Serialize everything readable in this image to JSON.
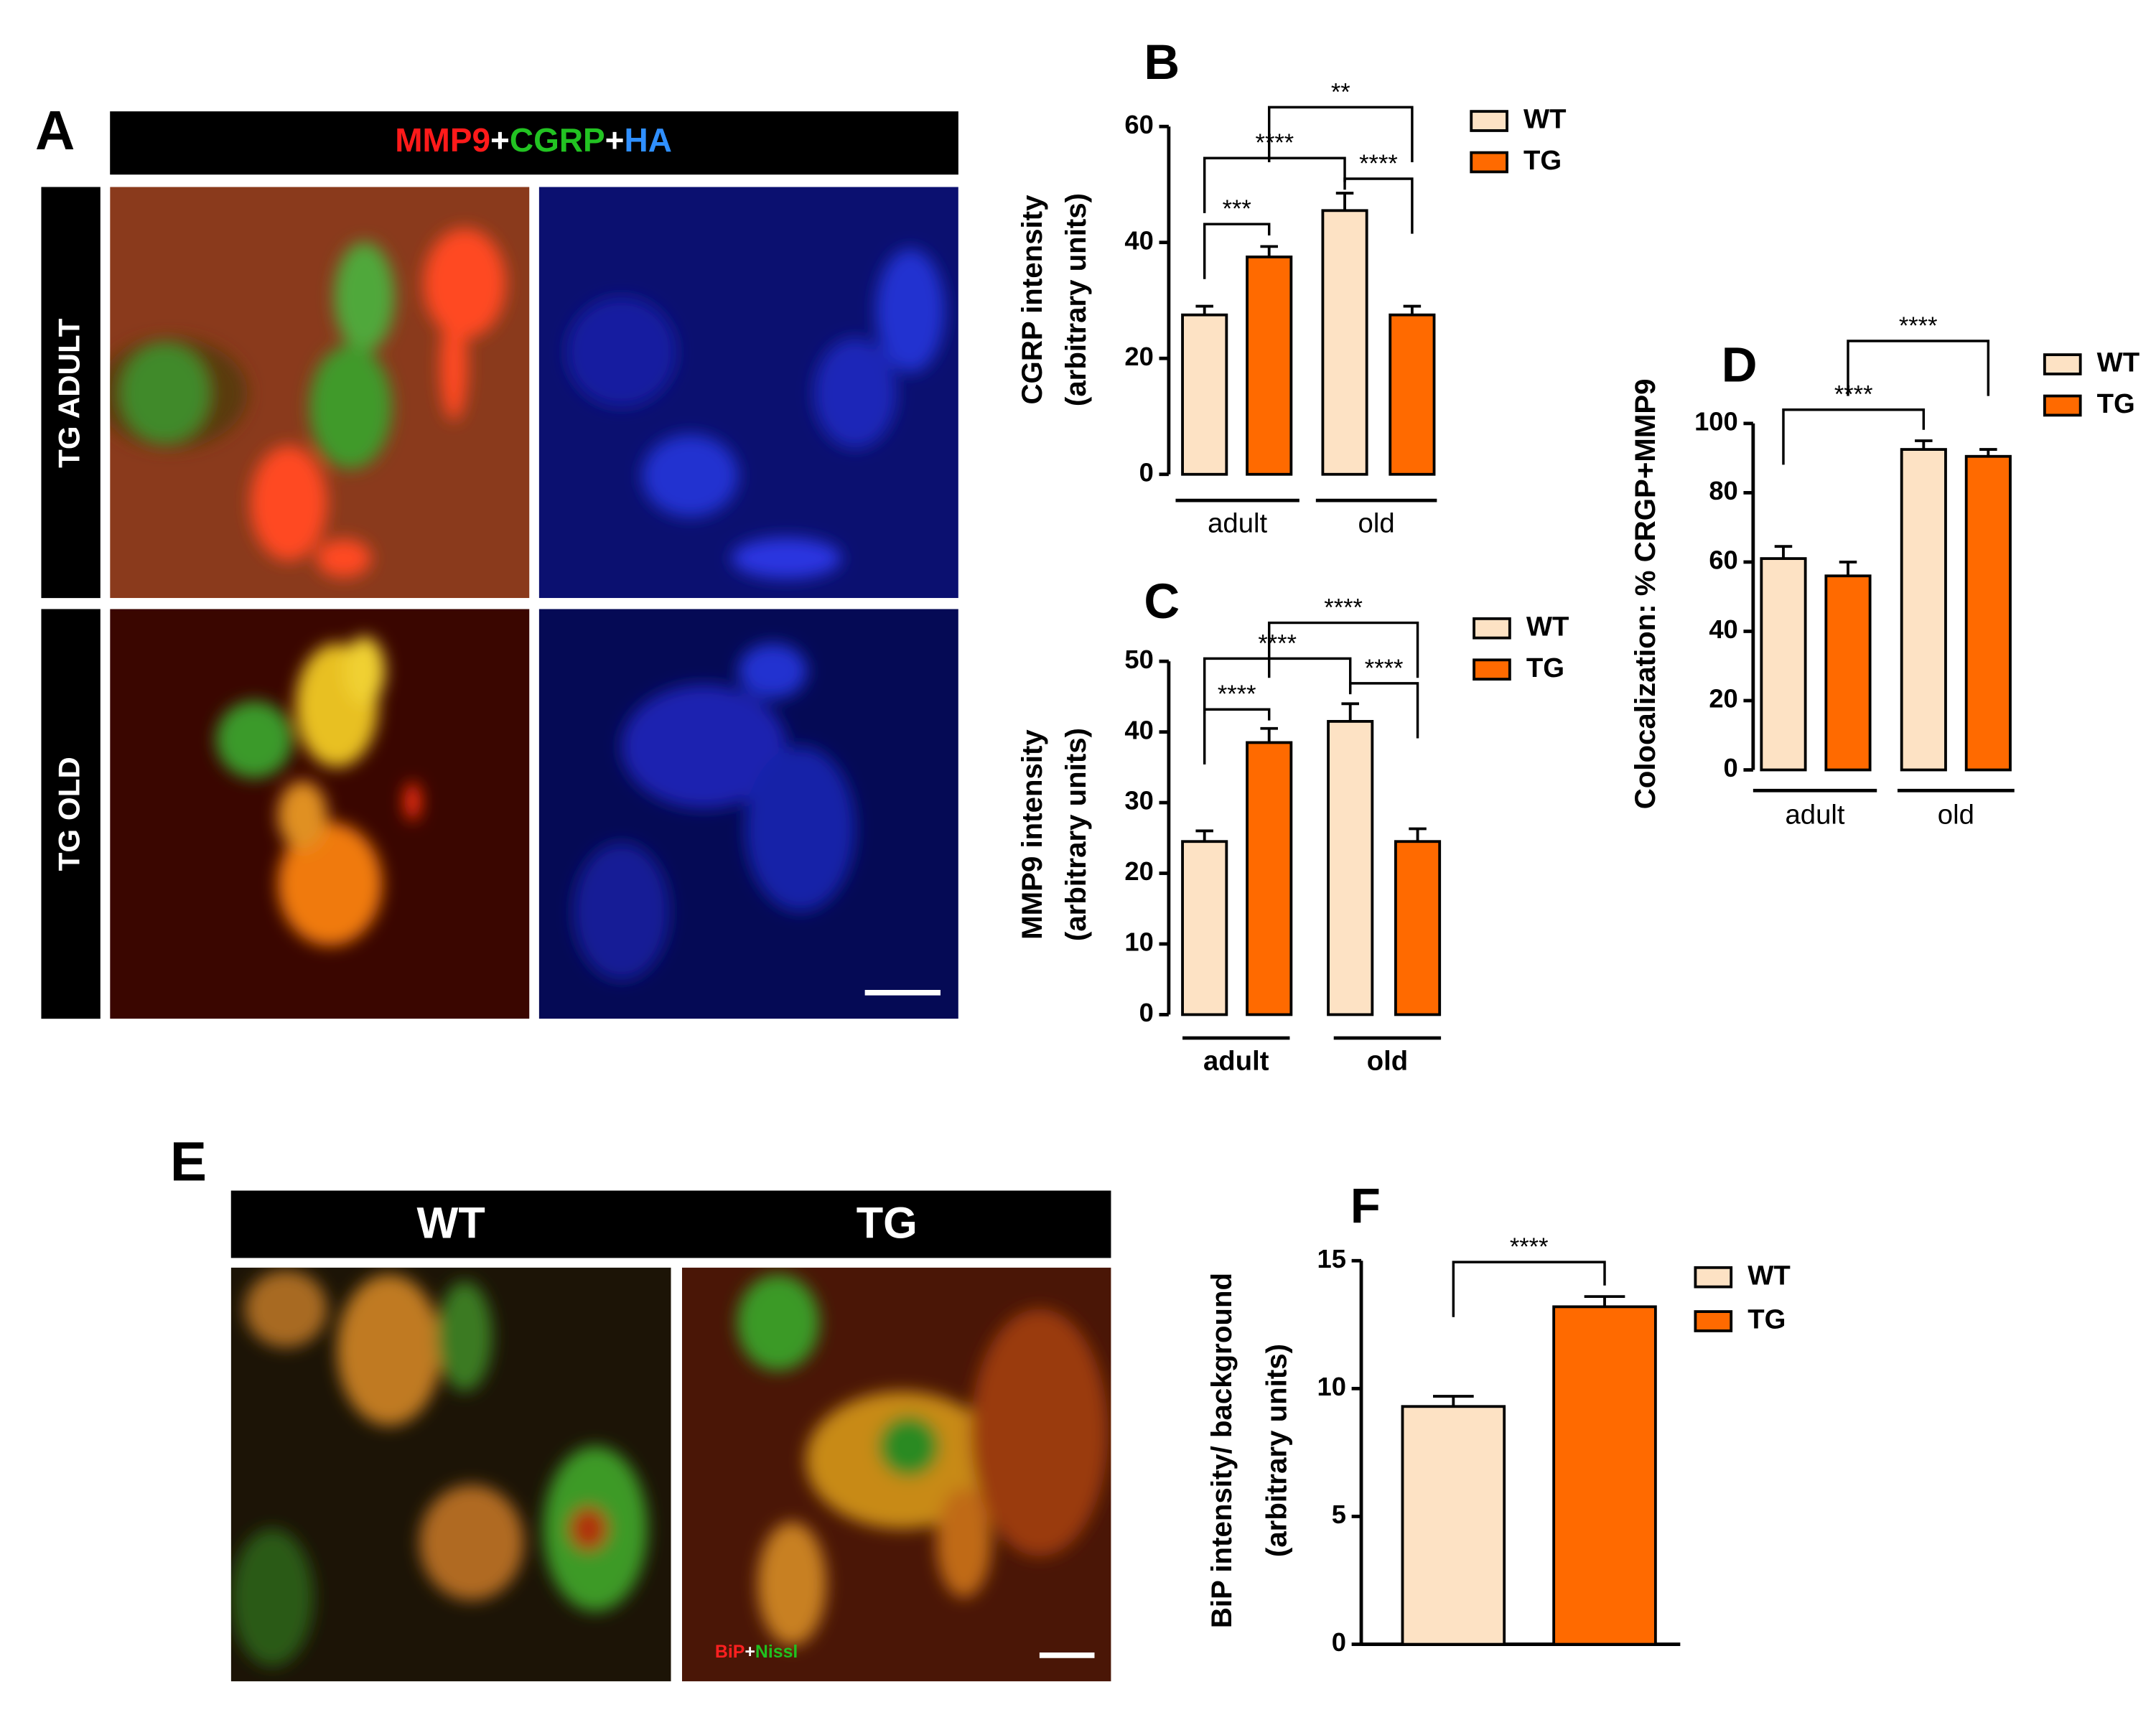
{
  "panel_labels": {
    "A": "A",
    "E": "E"
  },
  "image_panels": {
    "header": [
      "MMP9",
      "+",
      "CGRP",
      "+",
      "HA"
    ],
    "rows": [
      "TG ADULT",
      "TG OLD"
    ],
    "e_columns": [
      "WT",
      "TG"
    ],
    "e_stain": [
      "BiP",
      "+",
      "Nissl"
    ]
  },
  "chart_data": [
    {
      "type": "bar",
      "title": "B",
      "ylabel": [
        "CGRP intensity",
        "(arbitrary units)"
      ],
      "categories": [
        "adult",
        "old"
      ],
      "series": [
        {
          "name": "WT",
          "color": "#fde2c4",
          "values": [
            27.5,
            45.5
          ],
          "errors": [
            1.5,
            3
          ]
        },
        {
          "name": "TG",
          "color": "#ff6a00",
          "values": [
            37.5,
            27.5
          ],
          "errors": [
            1.8,
            1.5
          ]
        }
      ],
      "ylim": [
        0,
        60
      ],
      "yticks": [
        0,
        20,
        40,
        60
      ],
      "annotations": [
        "***",
        "****",
        "****",
        "**"
      ]
    },
    {
      "type": "bar",
      "title": "C",
      "ylabel": [
        "MMP9 intensity",
        "(arbitrary units)"
      ],
      "categories": [
        "adult",
        "old"
      ],
      "series": [
        {
          "name": "WT",
          "color": "#fde2c4",
          "values": [
            24.5,
            41.5
          ],
          "errors": [
            1.5,
            2.5
          ]
        },
        {
          "name": "TG",
          "color": "#ff6a00",
          "values": [
            38.5,
            24.5
          ],
          "errors": [
            2,
            1.8
          ]
        }
      ],
      "ylim": [
        0,
        50
      ],
      "yticks": [
        0,
        10,
        20,
        30,
        40,
        50
      ],
      "annotations": [
        "****",
        "****",
        "****",
        "****"
      ]
    },
    {
      "type": "bar",
      "title": "D",
      "ylabel": [
        "Colocalization: % CRGP+MMP9"
      ],
      "categories": [
        "adult",
        "old"
      ],
      "series": [
        {
          "name": "WT",
          "color": "#fde2c4",
          "values": [
            61,
            92.5
          ],
          "errors": [
            3.5,
            2.5
          ]
        },
        {
          "name": "TG",
          "color": "#ff6a00",
          "values": [
            56,
            90.5
          ],
          "errors": [
            4,
            2
          ]
        }
      ],
      "ylim": [
        0,
        100
      ],
      "yticks": [
        0,
        20,
        40,
        60,
        80,
        100
      ],
      "annotations": [
        "****",
        "****"
      ]
    },
    {
      "type": "bar",
      "title": "F",
      "ylabel": [
        "BiP intensity/ background",
        "(arbitrary units)"
      ],
      "categories": [
        null
      ],
      "series": [
        {
          "name": "WT",
          "color": "#fde2c4",
          "values": [
            9.3
          ],
          "errors": [
            0.4
          ]
        },
        {
          "name": "TG",
          "color": "#ff6a00",
          "values": [
            13.2
          ],
          "errors": [
            0.4
          ]
        }
      ],
      "ylim": [
        0,
        15
      ],
      "yticks": [
        0,
        5,
        10,
        15
      ],
      "annotations": [
        "****"
      ]
    }
  ]
}
